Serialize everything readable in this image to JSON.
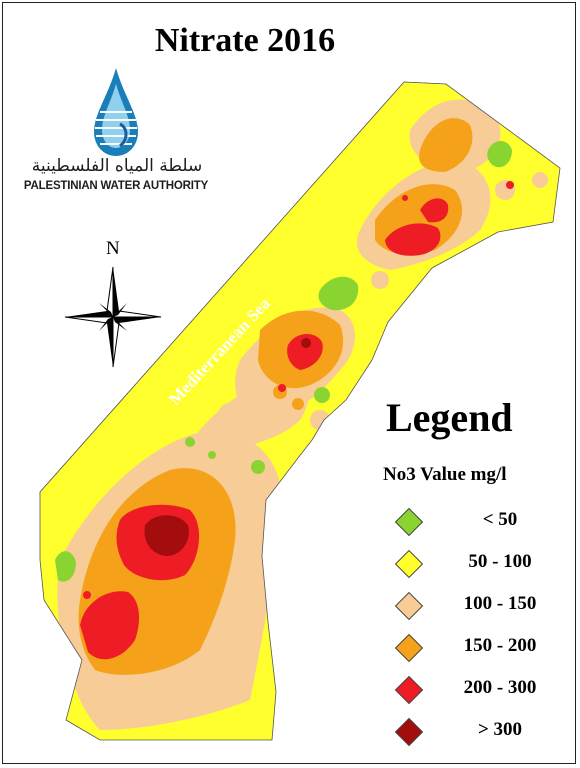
{
  "title": "Nitrate 2016",
  "logo": {
    "arabic": "سلطة المياه الفلسطينية",
    "english": "PALESTINIAN WATER AUTHORITY",
    "colors": {
      "drop_dark": "#1a7fb8",
      "drop_light": "#8fd0ee"
    }
  },
  "map": {
    "sea_label": "Mediterranean Sea",
    "sea_color": "#6aaee8",
    "north_label": "N"
  },
  "legend": {
    "title": "Legend",
    "subtitle": "No3 Value mg/l",
    "items": [
      {
        "label": "< 50",
        "color": "#8ad431"
      },
      {
        "label": "50 - 100",
        "color": "#ffff2e"
      },
      {
        "label": "100 - 150",
        "color": "#f7cc96"
      },
      {
        "label": "150 - 200",
        "color": "#f5a21a"
      },
      {
        "label": "200 - 300",
        "color": "#ee1c24"
      },
      {
        "label": "> 300",
        "color": "#a40d0d"
      }
    ]
  }
}
